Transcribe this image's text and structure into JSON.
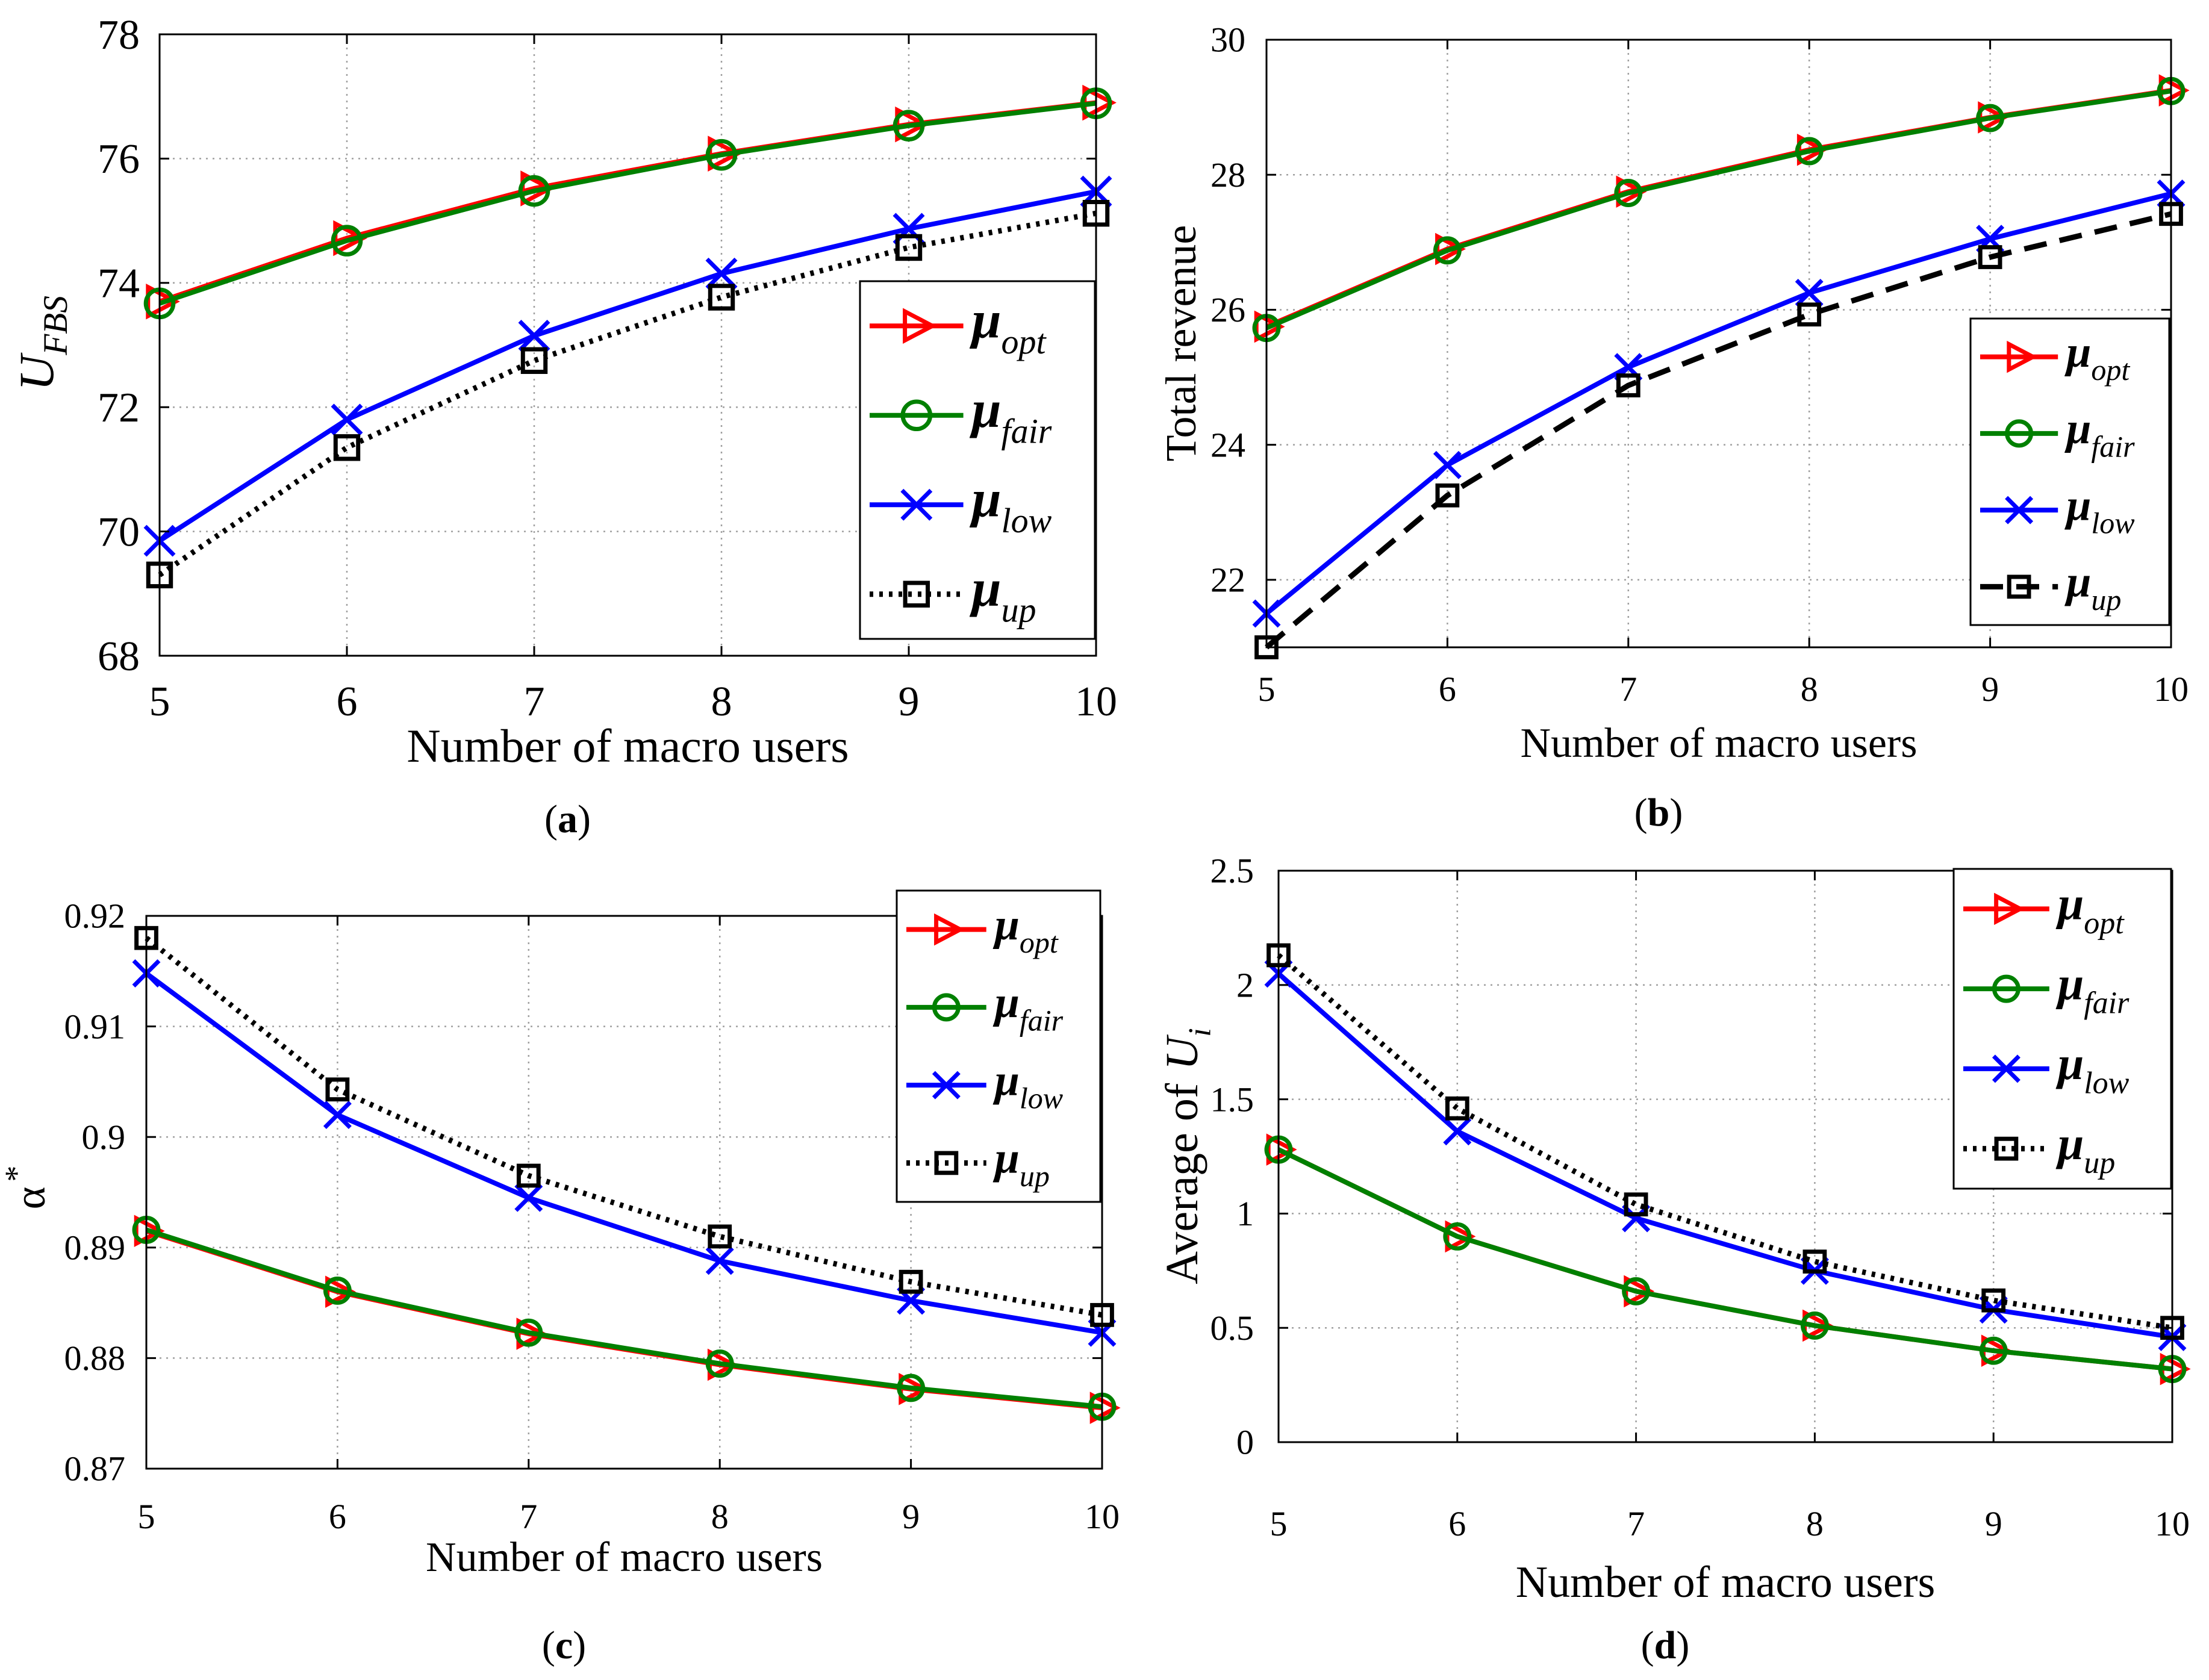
{
  "colors": {
    "opt": "#ff0000",
    "fair": "#008000",
    "low": "#0000ff",
    "up": "#000000",
    "grid": "#a0a0a0"
  },
  "chart_data": [
    {
      "id": "a",
      "type": "line",
      "caption": "(a)",
      "caption_letter": "a",
      "xlabel": "Number of macro users",
      "ylabel": "U",
      "ylabel_sub": "FBS",
      "x": [
        5,
        6,
        7,
        8,
        9,
        10
      ],
      "xlim": [
        5,
        10
      ],
      "ylim": [
        68,
        78
      ],
      "yticks": [
        68,
        70,
        72,
        74,
        76,
        78
      ],
      "yticklabels": [
        "68",
        "70",
        "72",
        "74",
        "76",
        "78"
      ],
      "grid": true,
      "legend_position": "center-right",
      "series": [
        {
          "key": "opt",
          "name": "μ",
          "sub": "opt",
          "marker": "triangle-right",
          "line": "solid",
          "values": [
            73.7,
            74.72,
            75.52,
            76.08,
            76.55,
            76.9
          ]
        },
        {
          "key": "fair",
          "name": "μ",
          "sub": "fair",
          "marker": "circle",
          "line": "solid",
          "values": [
            73.67,
            74.68,
            75.48,
            76.06,
            76.53,
            76.89
          ]
        },
        {
          "key": "low",
          "name": "μ",
          "sub": "low",
          "marker": "x",
          "line": "solid",
          "values": [
            69.85,
            71.8,
            73.15,
            74.15,
            74.87,
            75.47
          ]
        },
        {
          "key": "up",
          "name": "μ",
          "sub": "up",
          "marker": "square",
          "line": "dotted",
          "values": [
            69.3,
            71.35,
            72.75,
            73.77,
            74.57,
            75.12
          ]
        }
      ]
    },
    {
      "id": "b",
      "type": "line",
      "caption": "(b)",
      "caption_letter": "b",
      "xlabel": "Number of macro users",
      "ylabel": "Total revenue",
      "x": [
        5,
        6,
        7,
        8,
        9,
        10
      ],
      "xlim": [
        5,
        10
      ],
      "ylim": [
        21,
        30
      ],
      "yticks": [
        22,
        24,
        26,
        28,
        30
      ],
      "yticklabels": [
        "22",
        "24",
        "26",
        "28",
        "30"
      ],
      "grid": true,
      "legend_position": "center-right",
      "series": [
        {
          "key": "opt",
          "name": "μ",
          "sub": "opt",
          "marker": "triangle-right",
          "line": "solid",
          "values": [
            25.75,
            26.9,
            27.75,
            28.37,
            28.85,
            29.25
          ]
        },
        {
          "key": "fair",
          "name": "μ",
          "sub": "fair",
          "marker": "circle",
          "line": "solid",
          "values": [
            25.73,
            26.88,
            27.73,
            28.35,
            28.84,
            29.24
          ]
        },
        {
          "key": "low",
          "name": "μ",
          "sub": "low",
          "marker": "x",
          "line": "solid",
          "values": [
            21.5,
            23.7,
            25.15,
            26.25,
            27.05,
            27.72
          ]
        },
        {
          "key": "up",
          "name": "μ",
          "sub": "up",
          "marker": "square",
          "line": "dashed",
          "values": [
            21.0,
            23.25,
            24.88,
            25.93,
            26.78,
            27.42
          ]
        }
      ]
    },
    {
      "id": "c",
      "type": "line",
      "caption": "(c)",
      "caption_letter": "c",
      "xlabel": "Number of macro users",
      "ylabel": "α",
      "ylabel_sup": "*",
      "x": [
        5,
        6,
        7,
        8,
        9,
        10
      ],
      "xlim": [
        5,
        10
      ],
      "ylim": [
        0.87,
        0.92
      ],
      "yticks": [
        0.87,
        0.88,
        0.89,
        0.9,
        0.91,
        0.92
      ],
      "yticklabels": [
        "0.87",
        "0.88",
        "0.89",
        "0.9",
        "0.91",
        "0.92"
      ],
      "grid": true,
      "legend_position": "top-right",
      "series": [
        {
          "key": "opt",
          "name": "μ",
          "sub": "opt",
          "marker": "triangle-right",
          "line": "solid",
          "values": [
            0.8915,
            0.886,
            0.8822,
            0.8794,
            0.8772,
            0.8755
          ]
        },
        {
          "key": "fair",
          "name": "μ",
          "sub": "fair",
          "marker": "circle",
          "line": "solid",
          "values": [
            0.8916,
            0.8861,
            0.8823,
            0.8795,
            0.8773,
            0.8756
          ]
        },
        {
          "key": "low",
          "name": "μ",
          "sub": "low",
          "marker": "x",
          "line": "solid",
          "values": [
            0.9148,
            0.902,
            0.8945,
            0.8888,
            0.8852,
            0.8823
          ]
        },
        {
          "key": "up",
          "name": "μ",
          "sub": "up",
          "marker": "square",
          "line": "dotted",
          "values": [
            0.918,
            0.9043,
            0.8965,
            0.891,
            0.8869,
            0.8839
          ]
        }
      ]
    },
    {
      "id": "d",
      "type": "line",
      "caption": "(d)",
      "caption_letter": "d",
      "xlabel": "Number of macro users",
      "ylabel": "Average of",
      "ylabel_var": "U",
      "ylabel_sub": "i",
      "x": [
        5,
        6,
        7,
        8,
        9,
        10
      ],
      "xlim": [
        5,
        10
      ],
      "ylim": [
        0,
        2.5
      ],
      "yticks": [
        0,
        0.5,
        1,
        1.5,
        2,
        2.5
      ],
      "yticklabels": [
        "0",
        "0.5",
        "1",
        "1.5",
        "2",
        "2.5"
      ],
      "grid": true,
      "legend_position": "top-right",
      "series": [
        {
          "key": "opt",
          "name": "μ",
          "sub": "opt",
          "marker": "triangle-right",
          "line": "solid",
          "values": [
            1.28,
            0.9,
            0.66,
            0.51,
            0.4,
            0.32
          ]
        },
        {
          "key": "fair",
          "name": "μ",
          "sub": "fair",
          "marker": "circle",
          "line": "solid",
          "values": [
            1.28,
            0.9,
            0.66,
            0.51,
            0.4,
            0.32
          ]
        },
        {
          "key": "low",
          "name": "μ",
          "sub": "low",
          "marker": "x",
          "line": "solid",
          "values": [
            2.05,
            1.36,
            0.98,
            0.75,
            0.58,
            0.46
          ]
        },
        {
          "key": "up",
          "name": "μ",
          "sub": "up",
          "marker": "square",
          "line": "dotted",
          "values": [
            2.13,
            1.46,
            1.04,
            0.79,
            0.62,
            0.5
          ]
        }
      ]
    }
  ]
}
